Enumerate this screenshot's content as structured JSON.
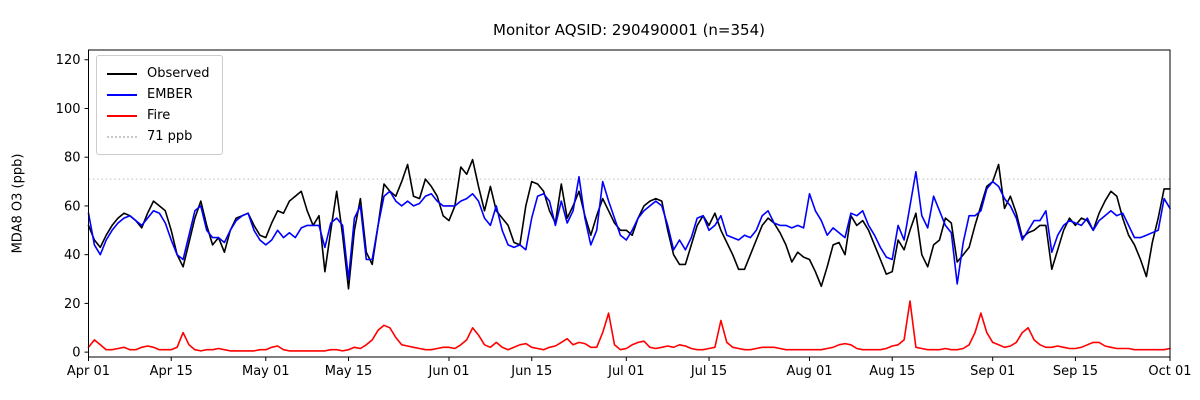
{
  "chart_data": {
    "type": "line",
    "title": "Monitor AQSID: 290490001 (n=354)",
    "xlabel": "",
    "ylabel": "MDA8 O3 (ppb)",
    "ylim": [
      -2,
      124
    ],
    "yticks": [
      0,
      20,
      40,
      60,
      80,
      100,
      120
    ],
    "x_days_total": 183,
    "xtick_days": [
      0,
      14,
      30,
      44,
      61,
      75,
      91,
      105,
      122,
      136,
      153,
      167,
      183
    ],
    "xtick_labels": [
      "Apr 01",
      "Apr 15",
      "May 01",
      "May 15",
      "Jun 01",
      "Jun 15",
      "Jul 01",
      "Jul 15",
      "Aug 01",
      "Aug 15",
      "Sep 01",
      "Sep 15",
      "Oct 01"
    ],
    "grid": false,
    "legend_position": "upper left",
    "ref_line": {
      "value": 71,
      "label": "71 ppb",
      "color": "#c9c9c9",
      "style": "dotted"
    },
    "series": [
      {
        "name": "Observed",
        "color": "#000000",
        "values": [
          52,
          46,
          43,
          48,
          52,
          55,
          57,
          56,
          54,
          51,
          57,
          62,
          60,
          58,
          50,
          40,
          35,
          45,
          55,
          62,
          52,
          44,
          47,
          41,
          50,
          55,
          56,
          57,
          52,
          48,
          47,
          53,
          58,
          57,
          62,
          64,
          66,
          58,
          52,
          56,
          33,
          50,
          66,
          48,
          26,
          50,
          63,
          41,
          36,
          52,
          69,
          66,
          64,
          70,
          77,
          64,
          63,
          71,
          68,
          64,
          56,
          54,
          60,
          76,
          73,
          79,
          68,
          58,
          68,
          58,
          55,
          52,
          45,
          44,
          60,
          70,
          69,
          66,
          58,
          53,
          69,
          55,
          60,
          66,
          56,
          48,
          56,
          63,
          58,
          53,
          50,
          50,
          48,
          55,
          60,
          62,
          63,
          62,
          50,
          40,
          36,
          36,
          44,
          52,
          56,
          52,
          57,
          50,
          45,
          40,
          34,
          34,
          40,
          46,
          52,
          55,
          53,
          49,
          44,
          37,
          41,
          39,
          38,
          33,
          27,
          35,
          44,
          45,
          40,
          56,
          52,
          54,
          50,
          44,
          38,
          32,
          33,
          46,
          42,
          50,
          57,
          40,
          35,
          44,
          46,
          55,
          53,
          37,
          40,
          43,
          52,
          60,
          68,
          70,
          77,
          59,
          64,
          57,
          47,
          49,
          50,
          52,
          52,
          34,
          42,
          50,
          55,
          52,
          55,
          54,
          50,
          57,
          62,
          66,
          64,
          55,
          48,
          44,
          38,
          31,
          45,
          55,
          67,
          67
        ]
      },
      {
        "name": "EMBER",
        "color": "#0000ff",
        "values": [
          57,
          44,
          40,
          46,
          50,
          53,
          55,
          56,
          54,
          52,
          55,
          58,
          57,
          53,
          46,
          40,
          38,
          48,
          58,
          60,
          50,
          47,
          47,
          45,
          50,
          54,
          56,
          57,
          50,
          46,
          44,
          46,
          50,
          47,
          49,
          47,
          51,
          52,
          52,
          52,
          43,
          53,
          55,
          52,
          30,
          55,
          60,
          38,
          38,
          52,
          64,
          66,
          62,
          60,
          62,
          60,
          61,
          64,
          65,
          62,
          60,
          60,
          60,
          62,
          63,
          65,
          62,
          55,
          52,
          60,
          50,
          44,
          43,
          44,
          42,
          55,
          64,
          65,
          62,
          52,
          62,
          53,
          58,
          72,
          55,
          44,
          50,
          70,
          62,
          55,
          48,
          46,
          50,
          55,
          58,
          60,
          62,
          60,
          52,
          42,
          46,
          42,
          47,
          55,
          56,
          50,
          52,
          56,
          48,
          47,
          46,
          48,
          47,
          50,
          56,
          58,
          53,
          52,
          52,
          51,
          52,
          51,
          65,
          58,
          54,
          48,
          51,
          49,
          47,
          57,
          56,
          58,
          52,
          48,
          43,
          39,
          38,
          52,
          46,
          60,
          74,
          56,
          51,
          64,
          58,
          52,
          49,
          28,
          45,
          56,
          56,
          58,
          67,
          70,
          68,
          63,
          60,
          55,
          46,
          50,
          54,
          54,
          58,
          41,
          48,
          52,
          54,
          53,
          52,
          55,
          50,
          54,
          56,
          58,
          56,
          57,
          52,
          47,
          47,
          48,
          49,
          50,
          63,
          59
        ]
      },
      {
        "name": "Fire",
        "color": "#ff0000",
        "values": [
          2,
          5,
          3,
          1,
          1,
          1.5,
          2,
          1,
          1,
          2,
          2.5,
          2,
          1,
          1,
          1,
          2,
          8,
          3,
          1,
          0.5,
          1,
          1,
          1.5,
          1,
          0.5,
          0.5,
          0.5,
          0.5,
          0.5,
          1,
          1,
          2,
          2.5,
          1,
          0.5,
          0.5,
          0.5,
          0.5,
          0.5,
          0.5,
          0.5,
          1,
          1,
          0.5,
          1,
          2,
          1.5,
          3,
          5,
          9,
          11,
          10,
          6,
          3,
          2.5,
          2,
          1.5,
          1,
          1,
          1.5,
          2,
          2,
          1.5,
          3,
          5,
          10,
          7,
          3,
          2,
          4,
          2,
          1,
          2,
          3,
          3.5,
          2,
          1.5,
          1,
          2,
          2.5,
          4,
          5.5,
          3,
          4,
          3.5,
          2,
          2,
          8,
          16,
          3,
          1,
          1.5,
          3,
          4,
          4.5,
          2,
          1.5,
          2,
          2.5,
          2,
          3,
          2.5,
          1.5,
          1,
          1,
          1.5,
          2,
          13,
          4,
          2,
          1.5,
          1,
          1,
          1.5,
          2,
          2,
          2,
          1.5,
          1,
          1,
          1,
          1,
          1,
          1,
          1,
          1.5,
          2,
          3,
          3.5,
          3,
          1.5,
          1,
          1,
          1,
          1,
          1.5,
          2.5,
          3,
          5,
          21,
          2,
          1.5,
          1,
          1,
          1,
          1.5,
          1,
          1,
          1.5,
          3,
          8,
          16,
          8,
          4,
          3,
          2,
          2.5,
          4,
          8,
          10,
          5,
          3,
          2,
          2,
          2.5,
          2,
          1.5,
          1.5,
          2,
          3,
          4,
          4,
          2.5,
          2,
          1.5,
          1.5,
          1.5,
          1,
          1,
          1,
          1,
          1,
          1,
          1.5
        ]
      }
    ]
  },
  "legend": {
    "items": [
      {
        "label": "Observed"
      },
      {
        "label": "EMBER"
      },
      {
        "label": "Fire"
      },
      {
        "label": "71 ppb"
      }
    ]
  }
}
